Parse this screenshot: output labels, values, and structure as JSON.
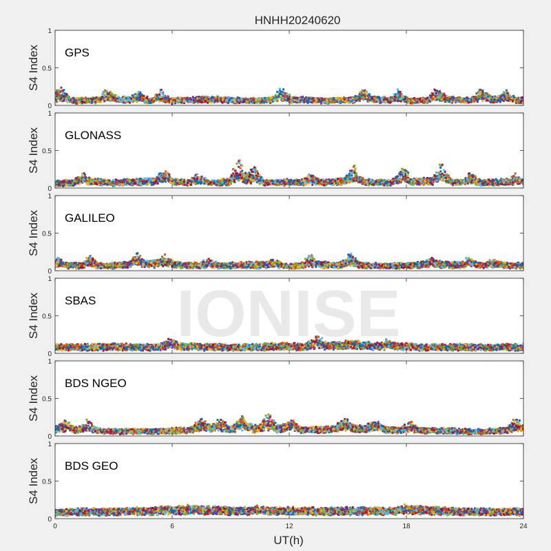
{
  "figure": {
    "title": "HNHH20240620",
    "watermark": "IONISE",
    "background_color": "#f0f0f0",
    "axes_background_color": "#ffffff",
    "watermark_color": "#e6e6e6"
  },
  "chart_data": {
    "type": "scatter",
    "title": "HNHH20240620",
    "xlabel": "UT(h)",
    "ylabel": "S4 Index",
    "xlim": [
      0,
      24
    ],
    "ylim": [
      0,
      1
    ],
    "xticks": [
      "0",
      "6",
      "12",
      "18",
      "24"
    ],
    "yticks": [
      "0",
      "0.5",
      "1"
    ],
    "grid": false,
    "legend": "none",
    "series_colors": [
      "#0072bd",
      "#d95319",
      "#edb120",
      "#7e2f8e",
      "#77ac30",
      "#4dbeee",
      "#a2142f"
    ],
    "panels": [
      {
        "label": "GPS",
        "base_values": [
          0.07,
          0.06,
          0.07,
          0.08,
          0.07,
          0.06,
          0.06,
          0.07,
          0.08,
          0.07,
          0.06,
          0.07,
          0.08,
          0.07,
          0.06,
          0.07,
          0.08,
          0.07,
          0.06,
          0.07,
          0.08,
          0.07,
          0.07,
          0.08,
          0.07
        ],
        "peaks": [
          [
            0.3,
            0.24
          ],
          [
            2.7,
            0.2
          ],
          [
            4.3,
            0.19
          ],
          [
            5.4,
            0.2
          ],
          [
            11.6,
            0.22
          ],
          [
            15.8,
            0.2
          ],
          [
            17.6,
            0.2
          ],
          [
            19.6,
            0.22
          ],
          [
            21.9,
            0.24
          ],
          [
            23.1,
            0.18
          ]
        ]
      },
      {
        "label": "GLONASS",
        "base_values": [
          0.06,
          0.07,
          0.08,
          0.07,
          0.08,
          0.09,
          0.08,
          0.07,
          0.07,
          0.08,
          0.08,
          0.07,
          0.08,
          0.07,
          0.08,
          0.09,
          0.08,
          0.07,
          0.08,
          0.09,
          0.08,
          0.07,
          0.07,
          0.08,
          0.08
        ],
        "peaks": [
          [
            1.4,
            0.2
          ],
          [
            5.6,
            0.24
          ],
          [
            7.3,
            0.18
          ],
          [
            9.4,
            0.38
          ],
          [
            10.2,
            0.3
          ],
          [
            13.1,
            0.18
          ],
          [
            15.3,
            0.28
          ],
          [
            17.8,
            0.29
          ],
          [
            19.8,
            0.34
          ],
          [
            21.3,
            0.2
          ],
          [
            23.6,
            0.16
          ]
        ]
      },
      {
        "label": "GALILEO",
        "base_values": [
          0.06,
          0.07,
          0.06,
          0.07,
          0.08,
          0.09,
          0.08,
          0.07,
          0.06,
          0.07,
          0.08,
          0.07,
          0.06,
          0.07,
          0.08,
          0.07,
          0.07,
          0.06,
          0.07,
          0.08,
          0.08,
          0.07,
          0.07,
          0.07,
          0.07
        ],
        "peaks": [
          [
            0.2,
            0.16
          ],
          [
            1.8,
            0.18
          ],
          [
            4.2,
            0.22
          ],
          [
            5.6,
            0.18
          ],
          [
            7.9,
            0.15
          ],
          [
            11.2,
            0.16
          ],
          [
            13.1,
            0.21
          ],
          [
            15.1,
            0.24
          ],
          [
            19.3,
            0.16
          ],
          [
            21.2,
            0.16
          ],
          [
            22.5,
            0.14
          ]
        ]
      },
      {
        "label": "SBAS",
        "base_values": [
          0.08,
          0.08,
          0.08,
          0.09,
          0.08,
          0.08,
          0.09,
          0.09,
          0.08,
          0.08,
          0.08,
          0.09,
          0.09,
          0.09,
          0.1,
          0.1,
          0.1,
          0.09,
          0.09,
          0.08,
          0.08,
          0.08,
          0.08,
          0.08,
          0.08
        ],
        "peaks": [
          [
            5.9,
            0.18
          ],
          [
            13.4,
            0.23
          ],
          [
            15.2,
            0.16
          ],
          [
            17.1,
            0.16
          ]
        ]
      },
      {
        "label": "BDS NGEO",
        "base_values": [
          0.09,
          0.08,
          0.07,
          0.06,
          0.06,
          0.06,
          0.07,
          0.08,
          0.09,
          0.09,
          0.1,
          0.1,
          0.09,
          0.08,
          0.09,
          0.1,
          0.09,
          0.08,
          0.07,
          0.07,
          0.07,
          0.06,
          0.06,
          0.07,
          0.08
        ],
        "peaks": [
          [
            0.5,
            0.18
          ],
          [
            1.7,
            0.22
          ],
          [
            7.5,
            0.26
          ],
          [
            8.4,
            0.22
          ],
          [
            9.6,
            0.26
          ],
          [
            10.9,
            0.3
          ],
          [
            12.1,
            0.2
          ],
          [
            14.8,
            0.22
          ],
          [
            16.4,
            0.2
          ],
          [
            18.2,
            0.18
          ],
          [
            23.6,
            0.24
          ]
        ]
      },
      {
        "label": "BDS GEO",
        "base_values": [
          0.08,
          0.09,
          0.09,
          0.09,
          0.1,
          0.1,
          0.11,
          0.11,
          0.11,
          0.1,
          0.1,
          0.1,
          0.1,
          0.1,
          0.1,
          0.1,
          0.1,
          0.1,
          0.11,
          0.11,
          0.1,
          0.09,
          0.09,
          0.09,
          0.09
        ],
        "peaks": [
          [
            7.0,
            0.14
          ],
          [
            10.5,
            0.15
          ],
          [
            18.0,
            0.14
          ]
        ]
      }
    ]
  }
}
